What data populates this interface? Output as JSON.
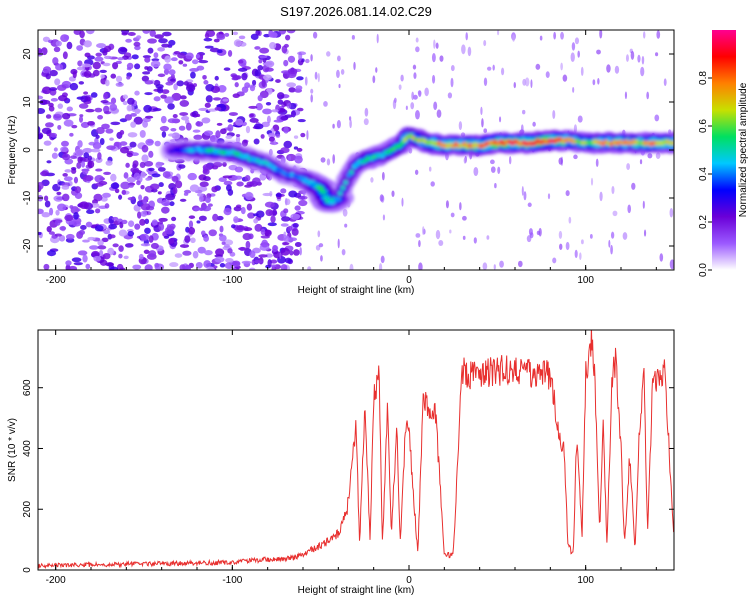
{
  "title": "S197.2026.081.14.02.C29",
  "chart_data": [
    {
      "type": "heatmap",
      "name": "spectrogram",
      "xlabel": "Height of straight line (km)",
      "ylabel": "Frequency (Hz)",
      "xlim": [
        -210,
        150
      ],
      "ylim": [
        -25,
        25
      ],
      "xticks": [
        -200,
        -100,
        0,
        100
      ],
      "yticks": [
        -20,
        -10,
        0,
        10,
        20
      ],
      "colorbar": {
        "label": "Normalized spectral amplitude",
        "range": [
          0,
          1
        ],
        "ticks": [
          "0.0",
          "0.2",
          "0.4",
          "0.6",
          "0.8"
        ],
        "colors": [
          "#ffffff",
          "#9b59ff",
          "#6a00d8",
          "#0000ff",
          "#00c8ff",
          "#00e060",
          "#c8e000",
          "#ff8000",
          "#ff0000",
          "#ff0090"
        ]
      },
      "ridge": {
        "x": [
          -135,
          -120,
          -100,
          -80,
          -70,
          -60,
          -55,
          -50,
          -45,
          -40,
          -35,
          -30,
          -25,
          -20,
          -15,
          -10,
          -5,
          0,
          10,
          20,
          30,
          40,
          50,
          60,
          70,
          80,
          90,
          100,
          110,
          120,
          130,
          140,
          150
        ],
        "freq": [
          0,
          0,
          -0.5,
          -3,
          -5,
          -6,
          -7,
          -8,
          -11,
          -10,
          -6,
          -3,
          -2,
          -1.5,
          -1,
          0,
          1,
          3,
          1.5,
          1,
          1,
          1,
          1.5,
          1.5,
          1.5,
          2,
          2,
          1.5,
          1.5,
          1.5,
          1.5,
          1.5,
          1.5
        ],
        "amplitude": [
          0.3,
          0.5,
          0.55,
          0.5,
          0.45,
          0.4,
          0.45,
          0.6,
          0.55,
          0.5,
          0.45,
          0.5,
          0.55,
          0.6,
          0.55,
          0.6,
          0.65,
          0.7,
          0.75,
          0.8,
          0.8,
          0.85,
          0.9,
          0.92,
          0.9,
          0.95,
          0.8,
          0.7,
          0.75,
          0.8,
          0.75,
          0.8,
          0.75
        ]
      },
      "noise_region_x": [
        -210,
        -60
      ]
    },
    {
      "type": "line",
      "name": "snr",
      "xlabel": "Height of straight line (km)",
      "ylabel": "SNR (10 * v/v)",
      "xlim": [
        -210,
        150
      ],
      "ylim": [
        0,
        790
      ],
      "xticks": [
        -200,
        -100,
        0,
        100
      ],
      "yticks": [
        0,
        200,
        400,
        600
      ],
      "color": "#e8302f",
      "series": [
        {
          "name": "SNR",
          "x": [
            -210,
            -150,
            -100,
            -80,
            -65,
            -50,
            -40,
            -35,
            -30,
            -28,
            -25,
            -22,
            -20,
            -17,
            -15,
            -12,
            -10,
            -7,
            -5,
            -2,
            0,
            5,
            8,
            12,
            15,
            20,
            25,
            30,
            40,
            50,
            60,
            70,
            80,
            85,
            88,
            90,
            93,
            95,
            98,
            100,
            103,
            105,
            108,
            110,
            112,
            115,
            117,
            120,
            122,
            125,
            128,
            130,
            133,
            135,
            138,
            140,
            145,
            150
          ],
          "y": [
            15,
            20,
            25,
            35,
            40,
            80,
            120,
            200,
            480,
            90,
            520,
            100,
            560,
            650,
            80,
            560,
            100,
            480,
            90,
            470,
            450,
            50,
            560,
            520,
            520,
            50,
            50,
            650,
            640,
            660,
            650,
            650,
            640,
            450,
            380,
            80,
            50,
            450,
            120,
            650,
            760,
            650,
            130,
            500,
            80,
            650,
            680,
            400,
            80,
            380,
            60,
            400,
            650,
            120,
            640,
            620,
            650,
            100
          ]
        }
      ]
    }
  ]
}
